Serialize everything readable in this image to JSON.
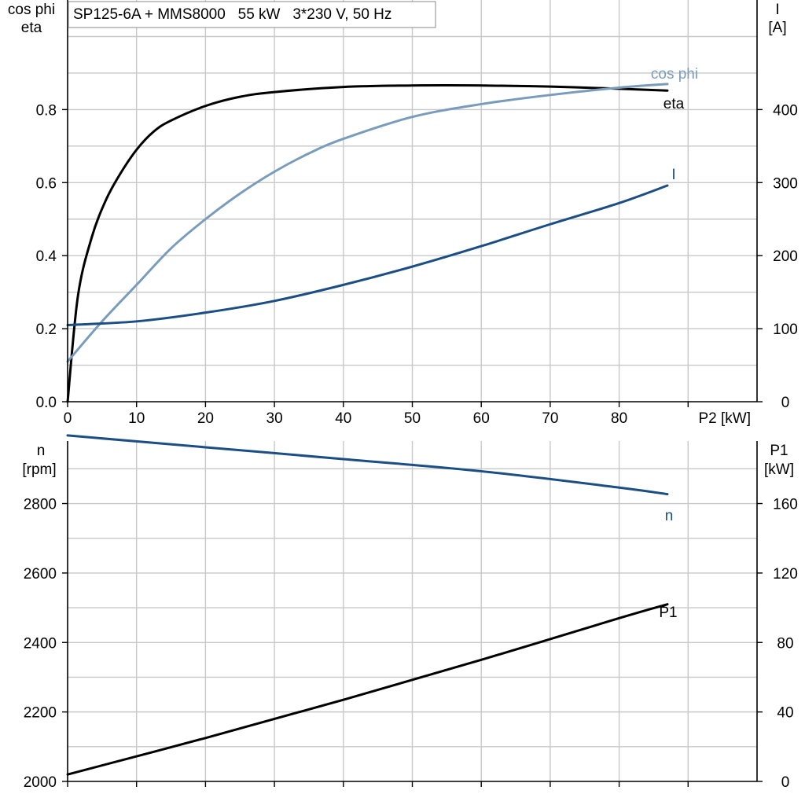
{
  "chart_title": "SP125-6A + MMS8000   55 kW   3*230 V, 50 Hz",
  "colors": {
    "cos_phi": "#7a9cbc",
    "eta": "#000000",
    "current": "#1b4e85",
    "speed": "#1b4e85",
    "power_input": "#000000",
    "grid": "#c8c8c8"
  },
  "chart_data": [
    {
      "type": "line",
      "xlabel": "P2 [kW]",
      "xlim": [
        0,
        90
      ],
      "x_ticks": [
        "0",
        "10",
        "20",
        "30",
        "40",
        "50",
        "60",
        "70",
        "80"
      ],
      "y_left": {
        "label_line1": "cos phi",
        "label_line2": "eta",
        "lim": [
          0,
          1.0
        ],
        "ticks": [
          "0.0",
          "0.2",
          "0.4",
          "0.6",
          "0.8"
        ]
      },
      "y_right": {
        "label_line1": "I",
        "label_line2": "[A]",
        "lim": [
          0,
          500
        ],
        "ticks": [
          "0",
          "100",
          "200",
          "300",
          "400"
        ]
      },
      "grid": true,
      "series": [
        {
          "key": "eta",
          "name": "eta",
          "axis": "left",
          "x": [
            0,
            1.5,
            3.5,
            5.5,
            7.5,
            10,
            12.5,
            15,
            20,
            25,
            30,
            40,
            50,
            60,
            70,
            80,
            87
          ],
          "y": [
            0,
            0.29,
            0.45,
            0.55,
            0.62,
            0.69,
            0.74,
            0.77,
            0.81,
            0.835,
            0.848,
            0.862,
            0.866,
            0.866,
            0.863,
            0.857,
            0.852
          ]
        },
        {
          "key": "cos_phi",
          "name": "cos phi",
          "axis": "left",
          "x": [
            0,
            5,
            10,
            15,
            20,
            25,
            30,
            35,
            40,
            50,
            60,
            70,
            80,
            87
          ],
          "y": [
            0.11,
            0.22,
            0.32,
            0.42,
            0.5,
            0.57,
            0.63,
            0.68,
            0.72,
            0.78,
            0.815,
            0.84,
            0.86,
            0.87
          ]
        },
        {
          "key": "current",
          "name": "I",
          "axis": "right",
          "x": [
            0,
            10,
            20,
            30,
            40,
            50,
            60,
            70,
            80,
            87
          ],
          "y": [
            105,
            110,
            122,
            138,
            160,
            185,
            213,
            243,
            272,
            296
          ]
        }
      ]
    },
    {
      "type": "line",
      "xlim": [
        0,
        90
      ],
      "y_left": {
        "label_line1": "n",
        "label_line2": "[rpm]",
        "lim": [
          2000,
          2980
        ],
        "ticks": [
          "2000",
          "2200",
          "2400",
          "2600",
          "2800"
        ]
      },
      "y_right": {
        "label_line1": "P1",
        "label_line2": "[kW]",
        "lim": [
          0,
          196
        ],
        "ticks": [
          "0",
          "40",
          "80",
          "120",
          "160"
        ]
      },
      "grid": true,
      "series": [
        {
          "key": "speed",
          "name": "n",
          "axis": "left",
          "x": [
            0,
            20,
            40,
            60,
            80,
            87
          ],
          "y": [
            2996,
            2962,
            2928,
            2893,
            2846,
            2827
          ]
        },
        {
          "key": "power_input",
          "name": "P1",
          "axis": "right",
          "x": [
            0,
            20,
            40,
            60,
            80,
            87
          ],
          "y": [
            4,
            25,
            47,
            70,
            94,
            102
          ]
        }
      ]
    }
  ]
}
